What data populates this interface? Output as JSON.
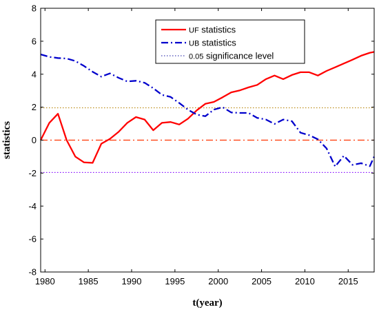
{
  "chart_data": {
    "type": "line",
    "xlabel": "t(year)",
    "ylabel": "statistics",
    "xlim": [
      1979.5,
      2018
    ],
    "ylim": [
      -8,
      8
    ],
    "xticks": [
      1980,
      1985,
      1990,
      1995,
      2000,
      2005,
      2010,
      2015
    ],
    "yticks": [
      8,
      6,
      4,
      2,
      0,
      -2,
      -4,
      -6,
      -8
    ],
    "x": [
      1979.5,
      1980.5,
      1981.5,
      1982.5,
      1983.5,
      1984.5,
      1985.5,
      1986.5,
      1987.5,
      1988.5,
      1989.5,
      1990.5,
      1991.5,
      1992.5,
      1993.5,
      1994.5,
      1995.5,
      1996.5,
      1997.5,
      1998.5,
      1999.5,
      2000.5,
      2001.5,
      2002.5,
      2003.5,
      2004.5,
      2005.5,
      2006.5,
      2007.5,
      2008.5,
      2009.5,
      2010.5,
      2011.5,
      2012.5,
      2013.5,
      2014.5,
      2015.5,
      2016.5,
      2017.5,
      2018
    ],
    "series": [
      {
        "name": "UF statistics",
        "color": "#ff0000",
        "style": "solid",
        "values": [
          0.0,
          1.05,
          1.6,
          0.0,
          -1.0,
          -1.35,
          -1.38,
          -0.22,
          0.08,
          0.5,
          1.05,
          1.4,
          1.25,
          0.6,
          1.05,
          1.1,
          0.95,
          1.3,
          1.8,
          2.2,
          2.32,
          2.6,
          2.9,
          3.02,
          3.2,
          3.35,
          3.7,
          3.92,
          3.7,
          3.95,
          4.12,
          4.12,
          3.92,
          4.2,
          4.42,
          4.65,
          4.88,
          5.12,
          5.3,
          5.35
        ]
      },
      {
        "name": "UB statistics",
        "color": "#0000cc",
        "style": "dashdot",
        "values": [
          5.2,
          5.05,
          4.98,
          4.95,
          4.8,
          4.5,
          4.15,
          3.85,
          4.05,
          3.78,
          3.56,
          3.6,
          3.48,
          3.15,
          2.75,
          2.62,
          2.25,
          1.85,
          1.55,
          1.45,
          1.85,
          2.0,
          1.68,
          1.65,
          1.65,
          1.35,
          1.25,
          0.98,
          1.25,
          1.15,
          0.45,
          0.3,
          0.05,
          -0.5,
          -1.6,
          -0.95,
          -1.5,
          -1.4,
          -1.58,
          -1.0
        ]
      }
    ],
    "reference_lines": [
      {
        "name": "0.05 significance level",
        "y": 1.96,
        "color": "#b8860b",
        "style": "dotted"
      },
      {
        "name": "0.05 significance level",
        "y": -1.96,
        "color": "#8000ff",
        "style": "dotted"
      },
      {
        "name": "zero",
        "y": 0,
        "color": "#ff3300",
        "style": "dashdot"
      }
    ],
    "legend": {
      "placement": "top-right",
      "entries": [
        {
          "prefix": "UF",
          "label": " statistics",
          "color": "#ff0000",
          "style": "solid"
        },
        {
          "prefix": "UB",
          "label": " statistics",
          "color": "#0000cc",
          "style": "dashdot"
        },
        {
          "prefix": "0.05",
          "label": " significance level",
          "color": "#6060c0",
          "style": "dotted"
        }
      ]
    },
    "grid": false
  }
}
